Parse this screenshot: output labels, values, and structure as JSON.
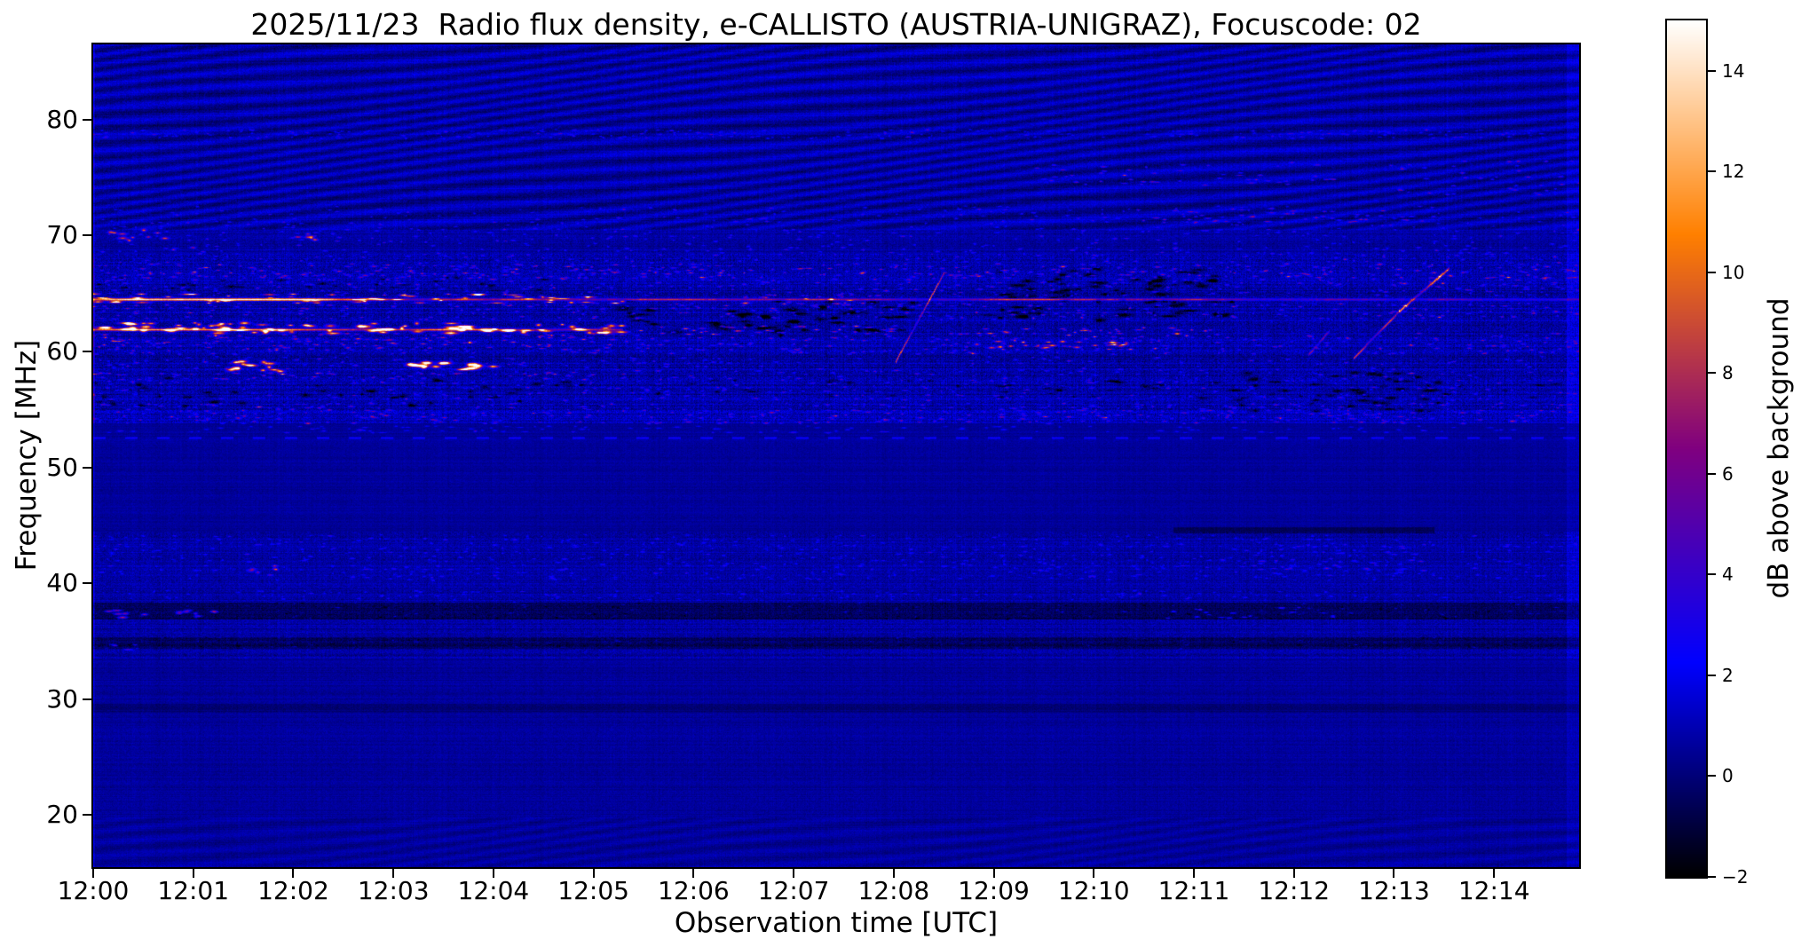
{
  "chart_data": {
    "type": "heatmap",
    "subtype": "radio-spectrogram",
    "title": "2025/11/23  Radio flux density, e-CALLISTO (AUSTRIA-UNIGRAZ), Focuscode: 02",
    "date": "2025/11/23",
    "network": "e-CALLISTO",
    "station": "AUSTRIA-UNIGRAZ",
    "focuscode": "02",
    "xlabel": "Observation time [UTC]",
    "ylabel": "Frequency [MHz]",
    "x_ticks": [
      "12:00",
      "12:01",
      "12:02",
      "12:03",
      "12:04",
      "12:05",
      "12:06",
      "12:07",
      "12:08",
      "12:09",
      "12:10",
      "12:11",
      "12:12",
      "12:13",
      "12:14"
    ],
    "x_range_minutes": [
      0,
      14.85
    ],
    "y_ticks": [
      20,
      30,
      40,
      50,
      60,
      70,
      80
    ],
    "freq_range_mhz": [
      15.5,
      86.5
    ],
    "grid": false,
    "legend": "none",
    "colorbar": {
      "label": "dB above background",
      "ticks": [
        -2,
        0,
        2,
        4,
        6,
        8,
        10,
        12,
        14
      ],
      "vmin": -2,
      "vmax": 15,
      "colormap": "gnuplot2"
    },
    "background_level_db": 0.8,
    "features": [
      {
        "kind": "moire",
        "f0": 70.5,
        "f1": 86.5,
        "amp": 0.8,
        "note": "wavy interference ripples across upper band"
      },
      {
        "kind": "moire",
        "f0": 15.5,
        "f1": 19.8,
        "amp": 0.35
      },
      {
        "kind": "hline",
        "f": 64.55,
        "t0": 0,
        "t1": 5.3,
        "amp": 10,
        "thick": 2.0,
        "jitter": 3,
        "note": "strong persistent narrowband carrier"
      },
      {
        "kind": "hline",
        "f": 64.55,
        "t0": 5.3,
        "t1": 14.85,
        "amp": 6,
        "thick": 1.6,
        "jitter": 2.5
      },
      {
        "kind": "hline",
        "f": 61.9,
        "t0": 0,
        "t1": 5.3,
        "amp": 7.5,
        "thick": 1.8,
        "jitter": 3
      },
      {
        "kind": "blobs",
        "f0": 61.6,
        "f1": 62.5,
        "t0": 0,
        "t1": 5.3,
        "count": 90,
        "amp": [
          9,
          14.5
        ],
        "len": [
          6,
          26
        ],
        "h": [
          3,
          6
        ],
        "note": "intense yellow emission 12:00-12:05 near 62 MHz"
      },
      {
        "kind": "blobs",
        "f0": 64.2,
        "f1": 65.0,
        "t0": 0,
        "t1": 5.3,
        "count": 60,
        "amp": [
          8,
          13
        ],
        "len": [
          6,
          30
        ],
        "h": [
          2,
          4
        ]
      },
      {
        "kind": "blobs",
        "f0": 58.3,
        "f1": 59.2,
        "t0": 1.35,
        "t1": 1.95,
        "count": 14,
        "amp": [
          10,
          14
        ],
        "len": [
          8,
          22
        ],
        "h": [
          4,
          6
        ]
      },
      {
        "kind": "blobs",
        "f0": 58.3,
        "f1": 59.2,
        "t0": 3.1,
        "t1": 4.05,
        "count": 18,
        "amp": [
          10,
          14
        ],
        "len": [
          8,
          22
        ],
        "h": [
          4,
          6
        ]
      },
      {
        "kind": "blobs",
        "f0": 57.6,
        "f1": 58.3,
        "t0": 0,
        "t1": 5.3,
        "count": 50,
        "amp": [
          4,
          7
        ],
        "len": [
          4,
          12
        ],
        "h": [
          2,
          3
        ]
      },
      {
        "kind": "blobs",
        "f0": 69.6,
        "f1": 70.5,
        "t0": 0.15,
        "t1": 0.75,
        "count": 10,
        "amp": [
          7,
          10
        ],
        "len": [
          6,
          16
        ],
        "h": [
          3,
          5
        ]
      },
      {
        "kind": "blobs",
        "f0": 69.6,
        "f1": 70.4,
        "t0": 1.85,
        "t1": 2.25,
        "count": 6,
        "amp": [
          6,
          9
        ],
        "len": [
          6,
          14
        ],
        "h": [
          3,
          5
        ]
      },
      {
        "kind": "blobs",
        "f0": 69.4,
        "f1": 70.6,
        "t0": 0,
        "t1": 14.85,
        "count": 140,
        "amp": [
          2,
          4.5
        ],
        "len": [
          3,
          9
        ],
        "h": [
          2,
          3
        ]
      },
      {
        "kind": "blobs",
        "f0": 66.2,
        "f1": 67.6,
        "t0": 0,
        "t1": 14.85,
        "count": 420,
        "amp": [
          3,
          7
        ],
        "len": [
          3,
          12
        ],
        "h": [
          2,
          3
        ]
      },
      {
        "kind": "blobs",
        "f0": 62.8,
        "f1": 64.2,
        "t0": 0,
        "t1": 14.85,
        "count": 300,
        "amp": [
          3,
          6
        ],
        "len": [
          3,
          10
        ],
        "h": [
          2,
          3
        ]
      },
      {
        "kind": "blobs",
        "f0": 59.8,
        "f1": 61.6,
        "t0": 0,
        "t1": 14.85,
        "count": 350,
        "amp": [
          3,
          6
        ],
        "len": [
          3,
          10
        ],
        "h": [
          2,
          3
        ]
      },
      {
        "kind": "blobs",
        "f0": 60.1,
        "f1": 61.6,
        "t0": 0,
        "t1": 5.3,
        "count": 80,
        "amp": [
          5,
          8
        ],
        "len": [
          4,
          12
        ],
        "h": [
          2,
          3
        ]
      },
      {
        "kind": "blobs",
        "f0": 61.5,
        "f1": 62.3,
        "t0": 5.3,
        "t1": 8.1,
        "count": 40,
        "amp": [
          5,
          9
        ],
        "len": [
          4,
          14
        ],
        "h": [
          2,
          3
        ]
      },
      {
        "kind": "blobs",
        "f0": 61.3,
        "f1": 62.1,
        "t0": 8.8,
        "t1": 11.2,
        "count": 30,
        "amp": [
          6,
          10
        ],
        "len": [
          4,
          14
        ],
        "h": [
          2,
          3
        ]
      },
      {
        "kind": "blobs",
        "f0": 60.2,
        "f1": 60.9,
        "t0": 8.8,
        "t1": 10.4,
        "count": 25,
        "amp": [
          7,
          11
        ],
        "len": [
          5,
          16
        ],
        "h": [
          2,
          4
        ]
      },
      {
        "kind": "blobs",
        "f0": 64.0,
        "f1": 65.0,
        "t0": 6.5,
        "t1": 8.0,
        "count": 25,
        "amp": [
          5,
          8
        ],
        "len": [
          4,
          14
        ],
        "h": [
          2,
          3
        ]
      },
      {
        "kind": "blobs",
        "f0": 55.8,
        "f1": 59.6,
        "t0": 0,
        "t1": 14.85,
        "count": 500,
        "amp": [
          2,
          5
        ],
        "len": [
          3,
          10
        ],
        "h": [
          2,
          3
        ]
      },
      {
        "kind": "blobs",
        "f0": 53.8,
        "f1": 55.6,
        "t0": 0,
        "t1": 14.85,
        "count": 430,
        "amp": [
          2.5,
          5.5
        ],
        "len": [
          3,
          12
        ],
        "h": [
          2,
          3
        ]
      },
      {
        "kind": "blobs",
        "f0": 64.8,
        "f1": 66.2,
        "t0": 0,
        "t1": 14.85,
        "count": 250,
        "amp": [
          2.5,
          5
        ],
        "len": [
          3,
          10
        ],
        "h": [
          2,
          3
        ]
      },
      {
        "kind": "blobs",
        "f0": 67.6,
        "f1": 69.4,
        "t0": 0,
        "t1": 14.85,
        "count": 240,
        "amp": [
          2,
          4.5
        ],
        "len": [
          3,
          9
        ],
        "h": [
          2,
          3
        ]
      },
      {
        "kind": "blobs",
        "f0": 70.6,
        "f1": 72.6,
        "t0": 0,
        "t1": 14.85,
        "count": 200,
        "amp": [
          2,
          4
        ],
        "len": [
          3,
          9
        ],
        "h": [
          2,
          3
        ]
      },
      {
        "kind": "blobs",
        "f0": 71.2,
        "f1": 72.4,
        "t0": 10.4,
        "t1": 13.2,
        "count": 40,
        "amp": [
          4,
          6.5
        ],
        "len": [
          4,
          12
        ],
        "h": [
          2,
          3
        ]
      },
      {
        "kind": "blobs",
        "f0": 74.4,
        "f1": 76.4,
        "t0": 9.4,
        "t1": 12.4,
        "count": 50,
        "amp": [
          3,
          6
        ],
        "len": [
          4,
          12
        ],
        "h": [
          2,
          3
        ]
      },
      {
        "kind": "blobs",
        "f0": 73.5,
        "f1": 76.5,
        "t0": 12.9,
        "t1": 14.85,
        "count": 40,
        "amp": [
          3,
          5.5
        ],
        "len": [
          4,
          10
        ],
        "h": [
          2,
          3
        ]
      },
      {
        "kind": "blobs",
        "f0": 78.4,
        "f1": 79.2,
        "t0": 0,
        "t1": 14.85,
        "count": 240,
        "amp": [
          1.8,
          3.6
        ],
        "len": [
          3,
          9
        ],
        "h": [
          2,
          3
        ]
      },
      {
        "kind": "dark_patches",
        "f0": 61.4,
        "f1": 64.6,
        "t0": 5.3,
        "t1": 8.3,
        "count": 60,
        "amp": [
          -3.5,
          -2
        ],
        "len": [
          8,
          30
        ],
        "h": [
          3,
          7
        ]
      },
      {
        "kind": "dark_patches",
        "f0": 62.4,
        "f1": 67.2,
        "t0": 8.9,
        "t1": 11.4,
        "count": 80,
        "amp": [
          -3.5,
          -2
        ],
        "len": [
          8,
          30
        ],
        "h": [
          3,
          7
        ]
      },
      {
        "kind": "dark_patches",
        "f0": 54.8,
        "f1": 58.4,
        "t0": 11.4,
        "t1": 13.6,
        "count": 40,
        "amp": [
          -3,
          -1.8
        ],
        "len": [
          8,
          26
        ],
        "h": [
          3,
          6
        ]
      },
      {
        "kind": "dark_patches",
        "f0": 55.2,
        "f1": 57.8,
        "t0": 0,
        "t1": 5,
        "count": 40,
        "amp": [
          -2.8,
          -1.5
        ],
        "len": [
          6,
          22
        ],
        "h": [
          3,
          6
        ]
      },
      {
        "kind": "dark_patches",
        "f0": 65.2,
        "f1": 66.4,
        "t0": 0,
        "t1": 5.3,
        "count": 30,
        "amp": [
          -3,
          -1.8
        ],
        "len": [
          6,
          20
        ],
        "h": [
          2,
          5
        ]
      },
      {
        "kind": "dark_patches",
        "f0": 56.0,
        "f1": 57.6,
        "t0": 4,
        "t1": 14.85,
        "count": 60,
        "amp": [
          -2.5,
          -1.2
        ],
        "len": [
          8,
          24
        ],
        "h": [
          3,
          5
        ]
      },
      {
        "kind": "dashline",
        "f": 52.55,
        "t0": 0,
        "t1": 14.85,
        "amp": 2.2,
        "on": 14,
        "off": 22,
        "thick": 2
      },
      {
        "kind": "blobs",
        "f0": 53.0,
        "f1": 53.6,
        "t0": 0,
        "t1": 14.85,
        "count": 120,
        "amp": [
          1.5,
          3
        ],
        "len": [
          4,
          12
        ],
        "h": [
          2,
          3
        ]
      },
      {
        "kind": "blobs",
        "f0": 40.3,
        "f1": 44.2,
        "t0": 0,
        "t1": 14.85,
        "count": 700,
        "amp": [
          1.2,
          3.2
        ],
        "len": [
          3,
          10
        ],
        "h": [
          2,
          3
        ]
      },
      {
        "kind": "blobs",
        "f0": 40.8,
        "f1": 41.6,
        "t0": 1.5,
        "t1": 1.85,
        "count": 6,
        "amp": [
          4,
          6.5
        ],
        "len": [
          5,
          12
        ],
        "h": [
          3,
          5
        ]
      },
      {
        "kind": "blobs",
        "f0": 41.0,
        "f1": 43.4,
        "t0": 11.3,
        "t1": 13.3,
        "count": 40,
        "amp": [
          2.5,
          4.5
        ],
        "len": [
          4,
          12
        ],
        "h": [
          2,
          3
        ]
      },
      {
        "kind": "blobs",
        "f0": 38.6,
        "f1": 39.4,
        "t0": 0,
        "t1": 14.85,
        "count": 180,
        "amp": [
          1.2,
          2.8
        ],
        "len": [
          3,
          9
        ],
        "h": [
          2,
          3
        ]
      },
      {
        "kind": "band_offset",
        "f0": 36.9,
        "f1": 38.4,
        "t0": 0,
        "t1": 14.85,
        "amp": -1.3
      },
      {
        "kind": "blobs",
        "f0": 36.9,
        "f1": 38.4,
        "t0": 0,
        "t1": 14.85,
        "count": 320,
        "amp": [
          -1.5,
          2
        ],
        "len": [
          3,
          9
        ],
        "h": [
          2,
          3
        ]
      },
      {
        "kind": "blobs",
        "f0": 37.0,
        "f1": 37.7,
        "t0": 0.15,
        "t1": 0.55,
        "count": 6,
        "amp": [
          6,
          8.5
        ],
        "len": [
          8,
          18
        ],
        "h": [
          3,
          5
        ],
        "note": "bright pink blob near 12:00 at 37 MHz"
      },
      {
        "kind": "blobs",
        "f0": 37.0,
        "f1": 37.7,
        "t0": 0.8,
        "t1": 1.4,
        "count": 8,
        "amp": [
          4,
          6
        ],
        "len": [
          6,
          14
        ],
        "h": [
          3,
          4
        ]
      },
      {
        "kind": "blobs",
        "f0": 37.0,
        "f1": 38.0,
        "t0": 10.7,
        "t1": 12.6,
        "count": 20,
        "amp": [
          3,
          5.5
        ],
        "len": [
          4,
          12
        ],
        "h": [
          2,
          3
        ]
      },
      {
        "kind": "band_offset",
        "f0": 34.4,
        "f1": 35.4,
        "t0": 0,
        "t1": 14.85,
        "amp": -1.1
      },
      {
        "kind": "blobs",
        "f0": 34.4,
        "f1": 35.4,
        "t0": 0,
        "t1": 14.85,
        "count": 280,
        "amp": [
          -1.2,
          1.8
        ],
        "len": [
          3,
          9
        ],
        "h": [
          2,
          3
        ]
      },
      {
        "kind": "blobs",
        "f0": 34.3,
        "f1": 34.9,
        "t0": 0.1,
        "t1": 0.5,
        "count": 4,
        "amp": [
          3,
          4.5
        ],
        "len": [
          8,
          16
        ],
        "h": [
          2,
          4
        ]
      },
      {
        "kind": "band_offset",
        "f0": 44.3,
        "f1": 44.9,
        "t0": 10.8,
        "t1": 13.4,
        "amp": -1.0
      },
      {
        "kind": "band_offset",
        "f0": 28.9,
        "f1": 29.6,
        "t0": 0,
        "t1": 14.85,
        "amp": -0.6
      },
      {
        "kind": "diagonal",
        "t0": 8.02,
        "t1": 8.5,
        "f0": 59.2,
        "f1": 66.8,
        "amp": 10,
        "thick": 2.5,
        "note": "drifting burst-like streak near 12:08"
      },
      {
        "kind": "diagonal",
        "t0": 12.6,
        "t1": 13.05,
        "f0": 59.5,
        "f1": 63.5,
        "amp": 9,
        "thick": 2.2
      },
      {
        "kind": "diagonal",
        "t0": 13.05,
        "t1": 13.55,
        "f0": 63.5,
        "f1": 67.2,
        "amp": 11,
        "thick": 2.5,
        "note": "drifting burst-like streak near 12:13"
      },
      {
        "kind": "diagonal",
        "t0": 12.15,
        "t1": 12.35,
        "f0": 59.8,
        "f1": 61.8,
        "amp": 6,
        "thick": 2
      }
    ]
  }
}
